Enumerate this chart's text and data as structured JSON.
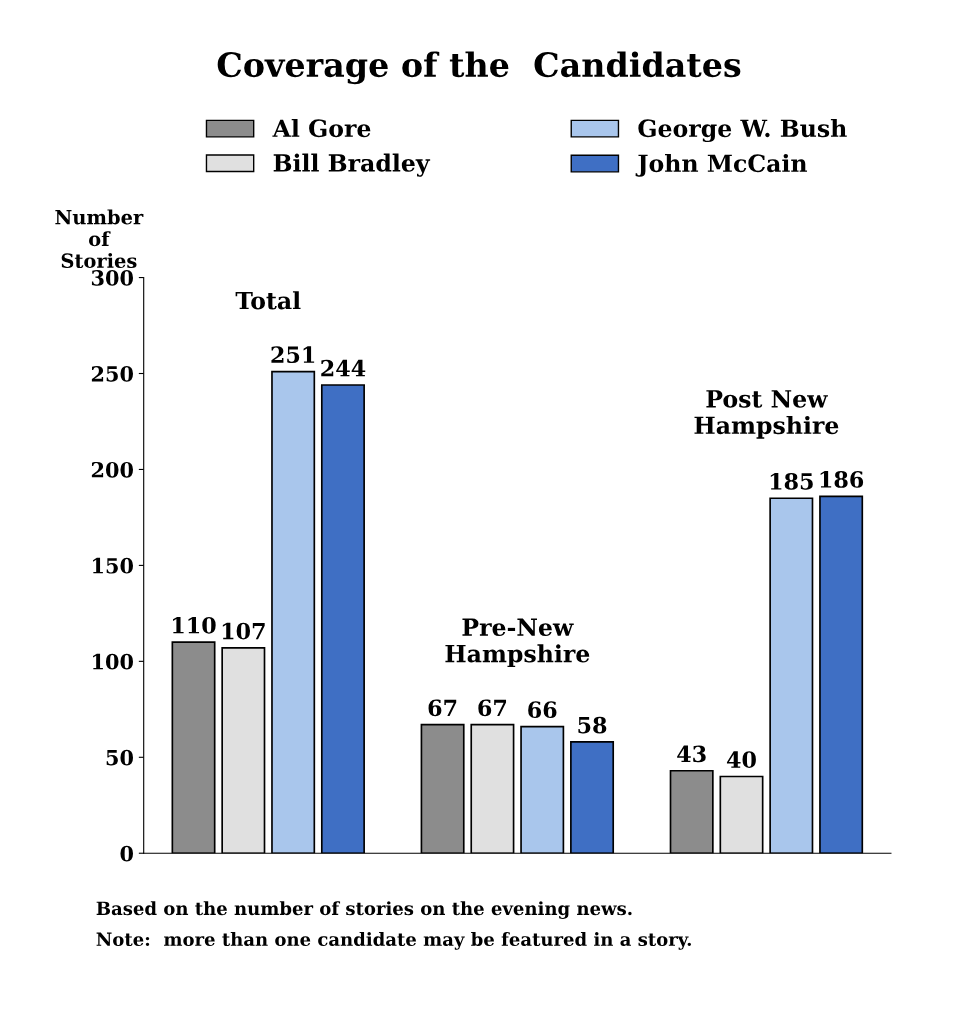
{
  "chart_data": {
    "type": "bar",
    "title": "Coverage of the  Candidates",
    "ylabel": "Number\nof\nStories",
    "categories": [
      "Total",
      "Pre-New\nHampshire",
      "Post New\nHampshire"
    ],
    "series": [
      {
        "name": "Al Gore",
        "color": "#8c8c8c",
        "values": [
          110,
          67,
          43
        ]
      },
      {
        "name": "Bill Bradley",
        "color": "#e0e0e0",
        "values": [
          107,
          67,
          40
        ]
      },
      {
        "name": "George W. Bush",
        "color": "#a9c6ec",
        "values": [
          251,
          66,
          185
        ]
      },
      {
        "name": "John McCain",
        "color": "#3f6fc4",
        "values": [
          244,
          58,
          186
        ]
      }
    ],
    "ylim": [
      0,
      300
    ],
    "yticks": [
      0,
      50,
      100,
      150,
      200,
      250,
      300
    ],
    "data_labels": true,
    "legend": "top",
    "grid": false,
    "annotations": [
      "Based on the number of stories on the evening news.",
      "Note:  more than one candidate may be featured in a story."
    ]
  }
}
